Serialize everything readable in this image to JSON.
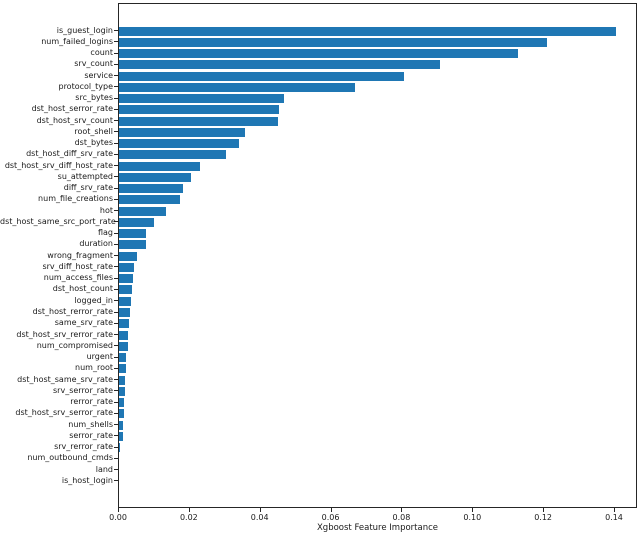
{
  "figure": {
    "background": "#ffffff",
    "text_color": "#1a1a1a",
    "spine_color": "#262626"
  },
  "chart_data": {
    "type": "bar",
    "orientation": "horizontal",
    "title": "",
    "xlabel": "Xgboost Feature Importance",
    "ylabel": "",
    "grid": false,
    "legend_position": "none",
    "bar_color": "#1f77b4",
    "xlim": [
      0,
      0.1465
    ],
    "x_tick_labels": [
      "0.00",
      "0.02",
      "0.04",
      "0.06",
      "0.08",
      "0.10",
      "0.12",
      "0.14"
    ],
    "categories": [
      "is_guest_login",
      "num_failed_logins",
      "count",
      "srv_count",
      "service",
      "protocol_type",
      "src_bytes",
      "dst_host_serror_rate",
      "dst_host_srv_count",
      "root_shell",
      "dst_bytes",
      "dst_host_diff_srv_rate",
      "dst_host_srv_diff_host_rate",
      "su_attempted",
      "diff_srv_rate",
      "num_file_creations",
      "hot",
      "dst_host_same_src_port_rate",
      "flag",
      "duration",
      "wrong_fragment",
      "srv_diff_host_rate",
      "num_access_files",
      "dst_host_count",
      "logged_in",
      "dst_host_rerror_rate",
      "same_srv_rate",
      "dst_host_srv_rerror_rate",
      "num_compromised",
      "urgent",
      "num_root",
      "dst_host_same_srv_rate",
      "srv_serror_rate",
      "rerror_rate",
      "dst_host_srv_serror_rate",
      "num_shells",
      "serror_rate",
      "srv_rerror_rate",
      "num_outbound_cmds",
      "land",
      "is_host_login"
    ],
    "values": [
      0.1403,
      0.1207,
      0.1125,
      0.0907,
      0.0805,
      0.0665,
      0.0465,
      0.0452,
      0.045,
      0.0355,
      0.034,
      0.0303,
      0.0229,
      0.0203,
      0.0181,
      0.0171,
      0.0133,
      0.0098,
      0.0077,
      0.0076,
      0.005,
      0.0043,
      0.004,
      0.0036,
      0.0035,
      0.0031,
      0.0028,
      0.0026,
      0.0025,
      0.0021,
      0.0019,
      0.0017,
      0.0016,
      0.0015,
      0.0014,
      0.0012,
      0.0011,
      0.0003,
      0.0,
      0.0,
      0.0
    ]
  }
}
